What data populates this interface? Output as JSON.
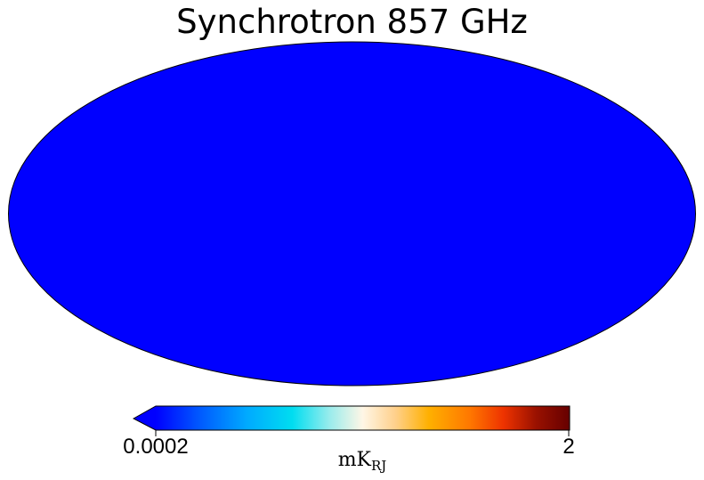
{
  "map": {
    "title": "Synchrotron 857 GHz",
    "projection": "mollweide",
    "fill_color": "#0000ff",
    "outline_color": "#000000"
  },
  "colorbar": {
    "min_label": "0.0002",
    "max_label": "2",
    "unit_main": "mK",
    "unit_sub": "RJ",
    "extend": "min",
    "under_color": "#0000ff",
    "colormap_stops": [
      {
        "offset": 0.0,
        "color": "#0000ff"
      },
      {
        "offset": 0.1,
        "color": "#0055ff"
      },
      {
        "offset": 0.22,
        "color": "#00aaff"
      },
      {
        "offset": 0.33,
        "color": "#00ddf0"
      },
      {
        "offset": 0.42,
        "color": "#99ecec"
      },
      {
        "offset": 0.5,
        "color": "#fff6e6"
      },
      {
        "offset": 0.58,
        "color": "#ffd08a"
      },
      {
        "offset": 0.66,
        "color": "#ffb000"
      },
      {
        "offset": 0.76,
        "color": "#ff7700"
      },
      {
        "offset": 0.84,
        "color": "#ee3300"
      },
      {
        "offset": 0.92,
        "color": "#991100"
      },
      {
        "offset": 1.0,
        "color": "#660000"
      }
    ]
  }
}
